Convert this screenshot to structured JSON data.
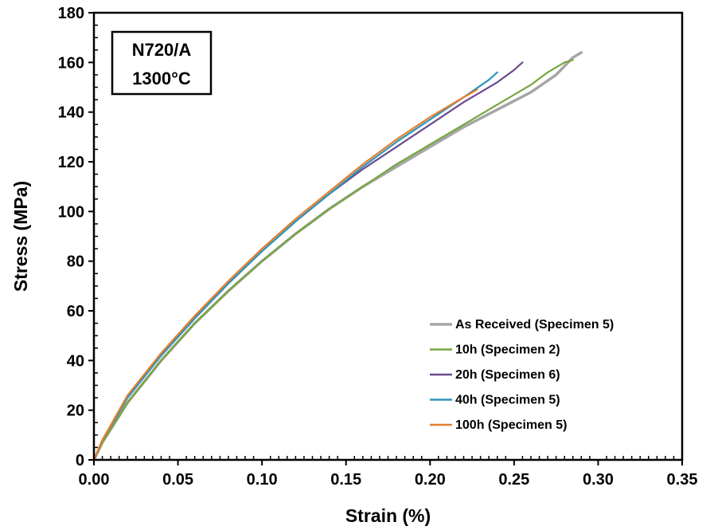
{
  "chart_data": {
    "type": "line",
    "title": "",
    "xlabel": "Strain (%)",
    "ylabel": "Stress (MPa)",
    "xlim": [
      0,
      0.35
    ],
    "ylim": [
      0,
      180
    ],
    "x_ticks": [
      0,
      0.05,
      0.1,
      0.15,
      0.2,
      0.25,
      0.3,
      0.35
    ],
    "x_tick_labels": [
      "0.00",
      "0.05",
      "0.10",
      "0.15",
      "0.20",
      "0.25",
      "0.30",
      "0.35"
    ],
    "y_ticks": [
      0,
      20,
      40,
      60,
      80,
      100,
      120,
      140,
      160,
      180
    ],
    "y_tick_labels": [
      "0",
      "20",
      "40",
      "60",
      "80",
      "100",
      "120",
      "140",
      "160",
      "180"
    ],
    "grid": false,
    "legend_position": "bottom-right",
    "annotation": {
      "lines": [
        "N720/A",
        "1300°C"
      ],
      "position": "top-left"
    },
    "series": [
      {
        "name": "As Received (Specimen 5)",
        "color": "#a6a6a6",
        "x": [
          0,
          0.005,
          0.02,
          0.04,
          0.06,
          0.08,
          0.1,
          0.12,
          0.14,
          0.16,
          0.18,
          0.2,
          0.22,
          0.24,
          0.26,
          0.275,
          0.285,
          0.29
        ],
        "y": [
          0,
          7,
          23,
          40,
          55,
          68,
          80,
          91,
          101,
          110,
          118,
          126,
          134,
          141,
          148,
          155,
          162,
          164
        ]
      },
      {
        "name": "10h (Specimen 2)",
        "color": "#77a640",
        "x": [
          0,
          0.005,
          0.02,
          0.04,
          0.06,
          0.08,
          0.1,
          0.12,
          0.14,
          0.16,
          0.18,
          0.2,
          0.22,
          0.24,
          0.26,
          0.27,
          0.28,
          0.285
        ],
        "y": [
          0,
          7,
          23,
          40,
          55,
          68,
          80,
          91,
          101,
          110,
          119,
          127,
          135,
          143,
          151,
          156,
          160,
          161
        ]
      },
      {
        "name": "20h (Specimen 6)",
        "color": "#6b4a8f",
        "x": [
          0,
          0.005,
          0.02,
          0.04,
          0.06,
          0.08,
          0.1,
          0.12,
          0.14,
          0.16,
          0.18,
          0.2,
          0.22,
          0.24,
          0.25,
          0.255
        ],
        "y": [
          0,
          8,
          25,
          42,
          57,
          71,
          84,
          96,
          107,
          117,
          126,
          135,
          144,
          152,
          157,
          160
        ]
      },
      {
        "name": "40h (Specimen 5)",
        "color": "#2e95b8",
        "x": [
          0,
          0.005,
          0.02,
          0.04,
          0.06,
          0.08,
          0.1,
          0.12,
          0.14,
          0.16,
          0.18,
          0.2,
          0.22,
          0.235,
          0.24
        ],
        "y": [
          0,
          8,
          25,
          42,
          57,
          71,
          84,
          96,
          107,
          118,
          128,
          137,
          146,
          153,
          156
        ]
      },
      {
        "name": "100h (Specimen 5)",
        "color": "#e67e2e",
        "x": [
          0,
          0.005,
          0.02,
          0.04,
          0.06,
          0.08,
          0.1,
          0.12,
          0.14,
          0.16,
          0.18,
          0.2,
          0.22,
          0.228
        ],
        "y": [
          0,
          8,
          26,
          43,
          58,
          72,
          85,
          97,
          108,
          119,
          129,
          138,
          146,
          149
        ]
      }
    ]
  }
}
